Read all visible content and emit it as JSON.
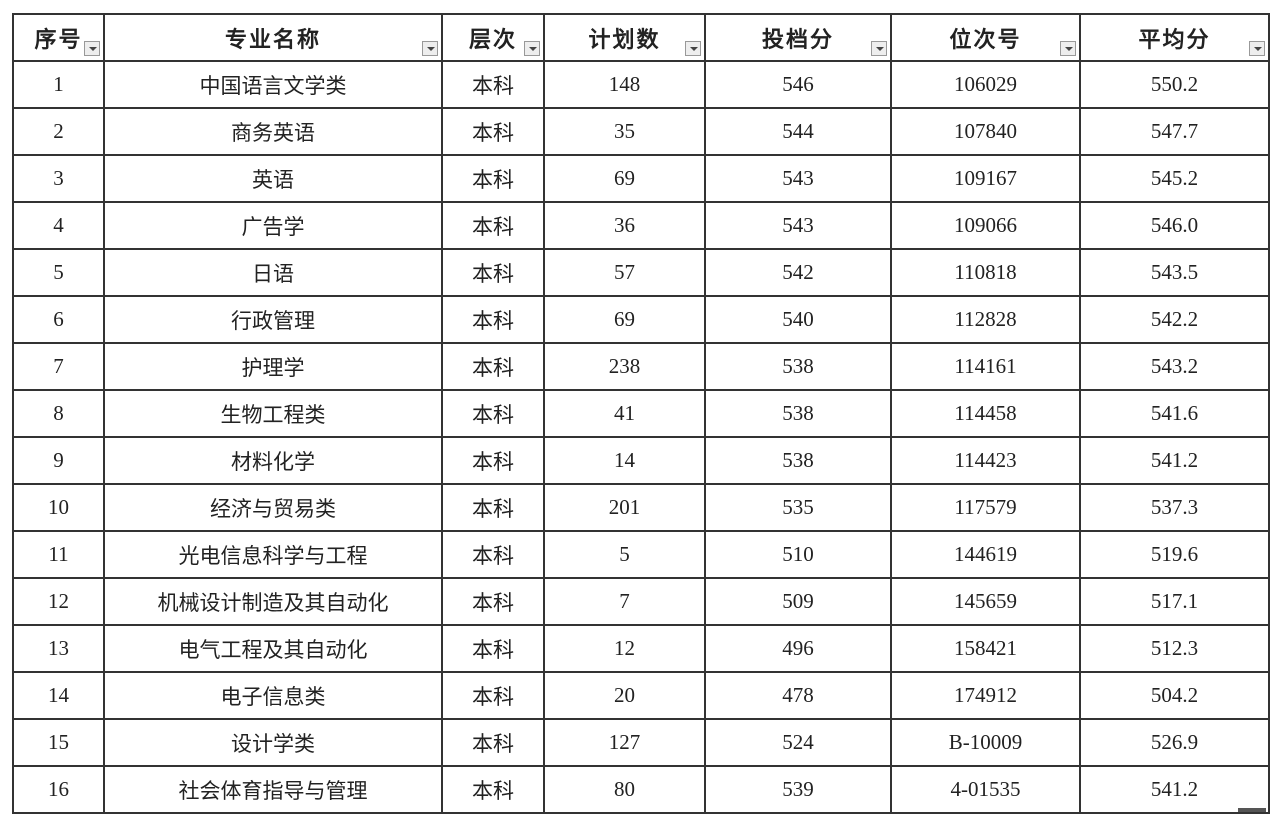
{
  "headers": [
    "序号",
    "专业名称",
    "层次",
    "计划数",
    "投档分",
    "位次号",
    "平均分"
  ],
  "rows": [
    [
      "1",
      "中国语言文学类",
      "本科",
      "148",
      "546",
      "106029",
      "550.2"
    ],
    [
      "2",
      "商务英语",
      "本科",
      "35",
      "544",
      "107840",
      "547.7"
    ],
    [
      "3",
      "英语",
      "本科",
      "69",
      "543",
      "109167",
      "545.2"
    ],
    [
      "4",
      "广告学",
      "本科",
      "36",
      "543",
      "109066",
      "546.0"
    ],
    [
      "5",
      "日语",
      "本科",
      "57",
      "542",
      "110818",
      "543.5"
    ],
    [
      "6",
      "行政管理",
      "本科",
      "69",
      "540",
      "112828",
      "542.2"
    ],
    [
      "7",
      "护理学",
      "本科",
      "238",
      "538",
      "114161",
      "543.2"
    ],
    [
      "8",
      "生物工程类",
      "本科",
      "41",
      "538",
      "114458",
      "541.6"
    ],
    [
      "9",
      "材料化学",
      "本科",
      "14",
      "538",
      "114423",
      "541.2"
    ],
    [
      "10",
      "经济与贸易类",
      "本科",
      "201",
      "535",
      "117579",
      "537.3"
    ],
    [
      "11",
      "光电信息科学与工程",
      "本科",
      "5",
      "510",
      "144619",
      "519.6"
    ],
    [
      "12",
      "机械设计制造及其自动化",
      "本科",
      "7",
      "509",
      "145659",
      "517.1"
    ],
    [
      "13",
      "电气工程及其自动化",
      "本科",
      "12",
      "496",
      "158421",
      "512.3"
    ],
    [
      "14",
      "电子信息类",
      "本科",
      "20",
      "478",
      "174912",
      "504.2"
    ],
    [
      "15",
      "设计学类",
      "本科",
      "127",
      "524",
      "B-10009",
      "526.9"
    ],
    [
      "16",
      "社会体育指导与管理",
      "本科",
      "80",
      "539",
      "4-01535",
      "541.2"
    ]
  ]
}
